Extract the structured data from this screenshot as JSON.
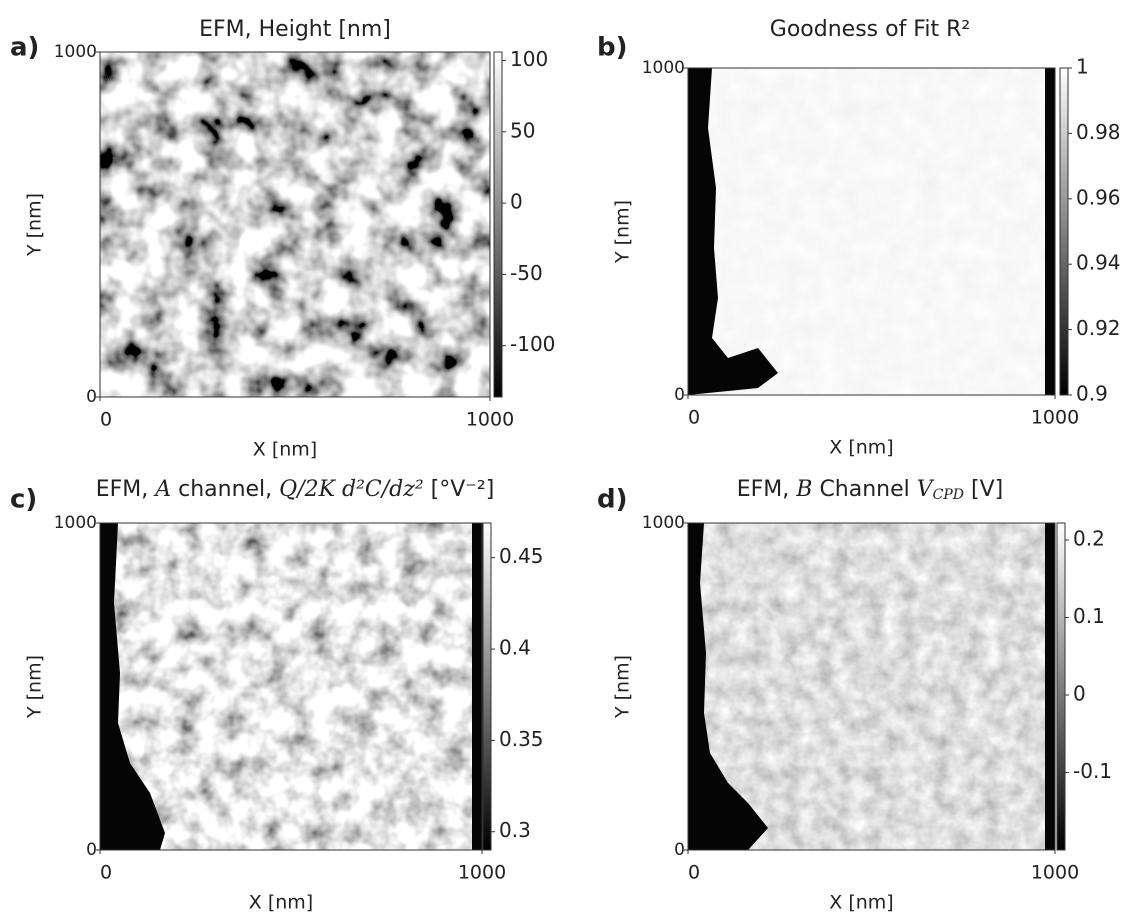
{
  "chart_data": [
    {
      "type": "heatmap",
      "panel": "a)",
      "title": [
        "EFM, Height [nm]"
      ],
      "xlabel": "X [nm]",
      "ylabel": "Y [nm]",
      "xlim": [
        0,
        1000
      ],
      "ylim": [
        0,
        1000
      ],
      "xticks": [
        0,
        1000
      ],
      "yticks": [
        0,
        1000
      ],
      "colorbar": {
        "lim": [
          -136,
          106
        ],
        "ticks": [
          100,
          50,
          0,
          -50,
          -100
        ]
      },
      "colormap": "gray"
    },
    {
      "type": "heatmap",
      "panel": "b)",
      "title": [
        "Goodness of Fit R²"
      ],
      "xlabel": "X [nm]",
      "ylabel": "Y [nm]",
      "xlim": [
        0,
        1000
      ],
      "ylim": [
        0,
        1000
      ],
      "xticks": [
        0,
        1000
      ],
      "yticks": [
        0,
        1000
      ],
      "colorbar": {
        "lim": [
          0.9,
          1
        ],
        "ticks": [
          1,
          0.98,
          0.96,
          0.94,
          0.92,
          0.9
        ]
      },
      "colormap": "gray"
    },
    {
      "type": "heatmap",
      "panel": "c)",
      "title": [
        "EFM, ",
        "A",
        " channel, ",
        "Q/2K d²C/dz²",
        " [°V⁻²]"
      ],
      "xlabel": "X [nm]",
      "ylabel": "Y [nm]",
      "xlim": [
        0,
        1000
      ],
      "ylim": [
        0,
        1000
      ],
      "xticks": [
        0,
        1000
      ],
      "yticks": [
        0,
        1000
      ],
      "colorbar": {
        "lim": [
          0.29,
          0.469
        ],
        "ticks": [
          0.45,
          0.4,
          0.35,
          0.3
        ]
      },
      "colormap": "gray"
    },
    {
      "type": "heatmap",
      "panel": "d)",
      "title": [
        "EFM, ",
        "B",
        " Channel ",
        "V",
        "CPD",
        " [V]"
      ],
      "xlabel": "X [nm]",
      "ylabel": "Y [nm]",
      "xlim": [
        0,
        1000
      ],
      "ylim": [
        0,
        1000
      ],
      "xticks": [
        0,
        1000
      ],
      "yticks": [
        0,
        1000
      ],
      "colorbar": {
        "lim": [
          -0.2,
          0.222
        ],
        "ticks": [
          0.2,
          0.1,
          0,
          -0.1
        ]
      },
      "colormap": "gray"
    }
  ]
}
